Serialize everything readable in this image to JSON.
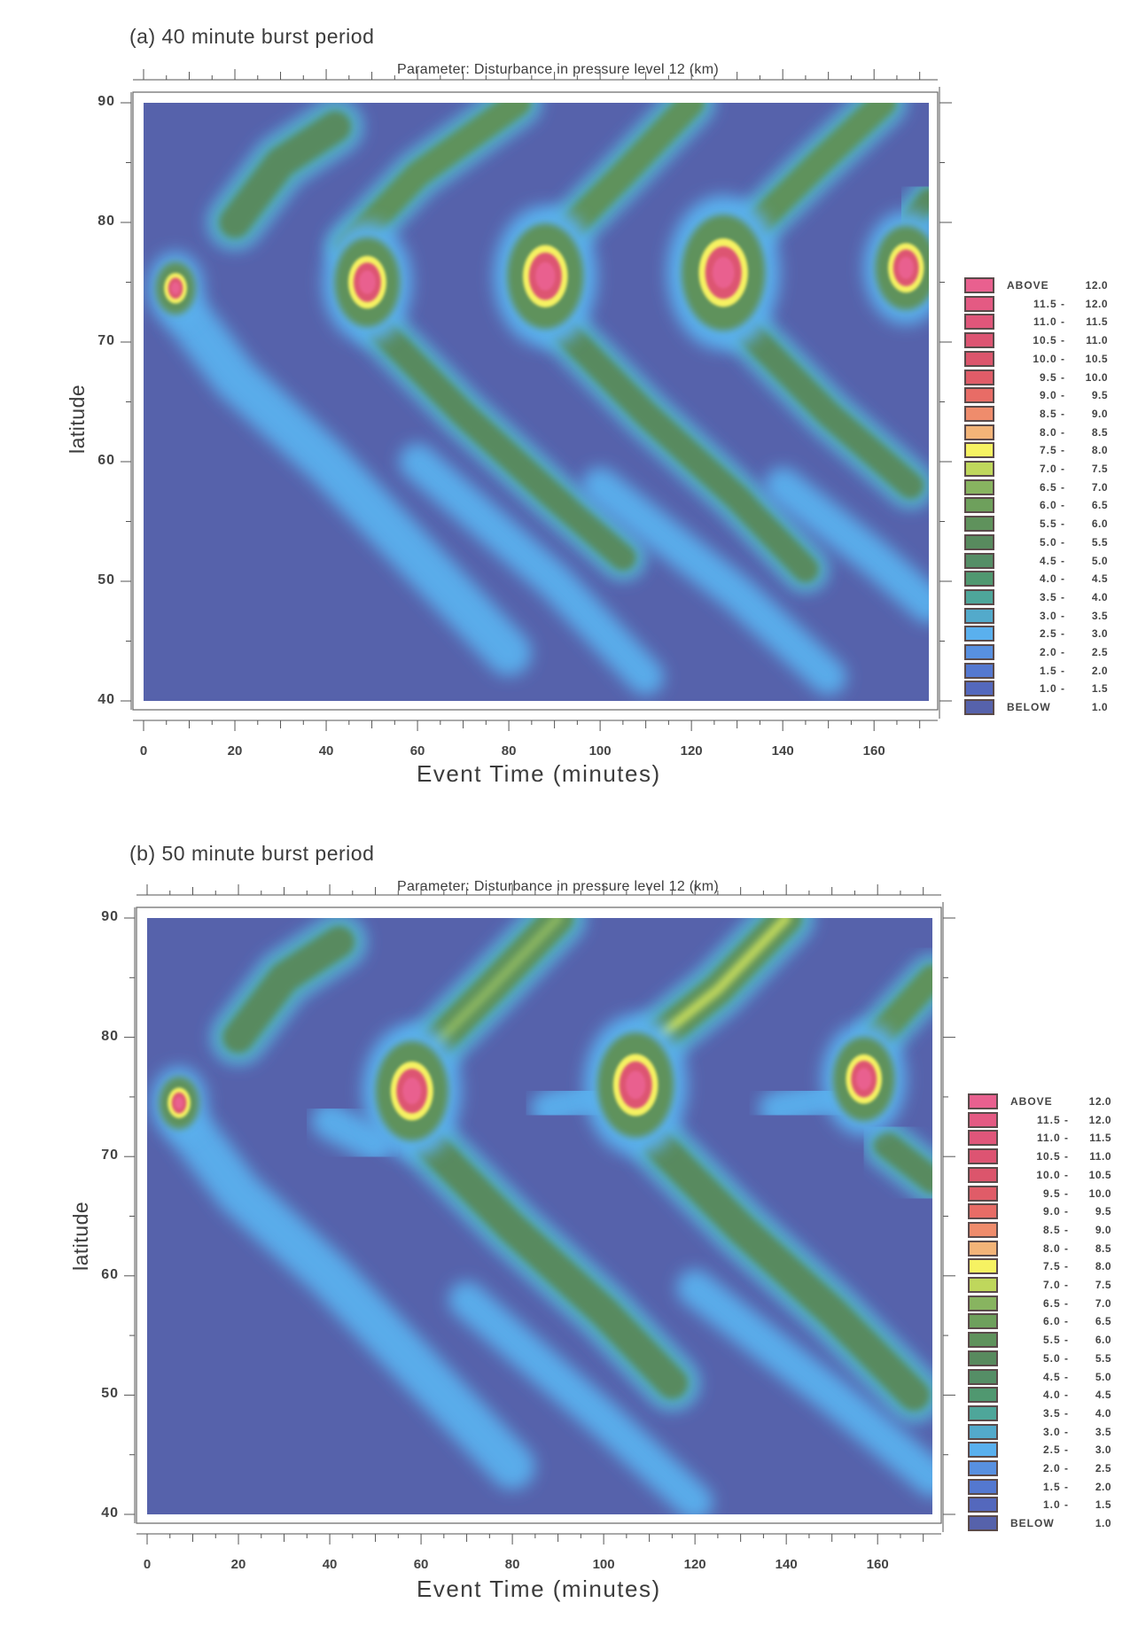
{
  "chart_data": [
    {
      "type": "heatmap",
      "panel_title": "(a) 40 minute burst period",
      "title": "Parameter: Disturbance in pressure level 12 (km)",
      "xlabel": "Event Time (minutes)",
      "ylabel": "latitude",
      "xlim": [
        0,
        172
      ],
      "ylim": [
        40,
        90
      ],
      "x_ticks": [
        0,
        20,
        40,
        60,
        80,
        100,
        120,
        140,
        160
      ],
      "y_ticks": [
        40,
        50,
        60,
        70,
        80,
        90
      ],
      "burst_period_min": 40,
      "hotspots": [
        {
          "t": 7,
          "lat": 74.5,
          "peak": 12.0,
          "r": 1.6
        },
        {
          "t": 49,
          "lat": 75,
          "peak": 12.0,
          "r": 3.0
        },
        {
          "t": 88,
          "lat": 75.5,
          "peak": 12.0,
          "r": 3.6
        },
        {
          "t": 127,
          "lat": 75.8,
          "peak": 12.0,
          "r": 4.0
        },
        {
          "t": 167,
          "lat": 76.2,
          "peak": 12.0,
          "r": 2.8
        }
      ],
      "bands": [
        {
          "points": [
            [
              20,
              80
            ],
            [
              30,
              85
            ],
            [
              42,
              88
            ]
          ],
          "level": 5.5,
          "width": 6
        },
        {
          "points": [
            [
              10,
              72
            ],
            [
              20,
              67
            ],
            [
              40,
              60
            ],
            [
              60,
              52
            ],
            [
              80,
              44
            ]
          ],
          "level": 2.5,
          "width": 5
        },
        {
          "points": [
            [
              45,
              78
            ],
            [
              60,
              84
            ],
            [
              82,
              90
            ]
          ],
          "level": 6.0,
          "width": 5
        },
        {
          "points": [
            [
              52,
              71
            ],
            [
              70,
              64
            ],
            [
              90,
              57
            ],
            [
              105,
              52
            ]
          ],
          "level": 5.5,
          "width": 5
        },
        {
          "points": [
            [
              60,
              60
            ],
            [
              90,
              50
            ],
            [
              110,
              42
            ]
          ],
          "level": 2.5,
          "width": 4
        },
        {
          "points": [
            [
              92,
              79
            ],
            [
              105,
              84
            ],
            [
              120,
              90
            ]
          ],
          "level": 6.0,
          "width": 5
        },
        {
          "points": [
            [
              92,
              71
            ],
            [
              110,
              64
            ],
            [
              130,
              57
            ],
            [
              145,
              51
            ]
          ],
          "level": 5.5,
          "width": 5
        },
        {
          "points": [
            [
              100,
              58
            ],
            [
              130,
              49
            ],
            [
              150,
              42
            ]
          ],
          "level": 2.5,
          "width": 4
        },
        {
          "points": [
            [
              132,
              79
            ],
            [
              148,
              85
            ],
            [
              162,
              90
            ]
          ],
          "level": 6.0,
          "width": 5
        },
        {
          "points": [
            [
              132,
              71
            ],
            [
              150,
              64
            ],
            [
              168,
              58
            ]
          ],
          "level": 5.5,
          "width": 5
        },
        {
          "points": [
            [
              140,
              58
            ],
            [
              160,
              52
            ],
            [
              172,
              48
            ]
          ],
          "level": 2.5,
          "width": 4
        },
        {
          "points": [
            [
              168,
              80
            ],
            [
              172,
              82
            ]
          ],
          "level": 5.5,
          "width": 4
        }
      ]
    },
    {
      "type": "heatmap",
      "panel_title": "(b) 50 minute burst period",
      "title": "Parameter: Disturbance in pressure level 12 (km)",
      "xlabel": "Event Time (minutes)",
      "ylabel": "latitude",
      "xlim": [
        0,
        172
      ],
      "ylim": [
        40,
        90
      ],
      "x_ticks": [
        0,
        20,
        40,
        60,
        80,
        100,
        120,
        140,
        160
      ],
      "y_ticks": [
        40,
        50,
        60,
        70,
        80,
        90
      ],
      "burst_period_min": 50,
      "hotspots": [
        {
          "t": 7,
          "lat": 74.5,
          "peak": 12.0,
          "r": 1.6
        },
        {
          "t": 58,
          "lat": 75.5,
          "peak": 12.0,
          "r": 3.4
        },
        {
          "t": 107,
          "lat": 76,
          "peak": 12.0,
          "r": 3.6
        },
        {
          "t": 157,
          "lat": 76.5,
          "peak": 12.0,
          "r": 2.8
        }
      ],
      "bands": [
        {
          "points": [
            [
              20,
              80
            ],
            [
              30,
              85
            ],
            [
              42,
              88
            ]
          ],
          "level": 5.5,
          "width": 6
        },
        {
          "points": [
            [
              10,
              72
            ],
            [
              20,
              67
            ],
            [
              40,
              60
            ],
            [
              60,
              52
            ],
            [
              80,
              44
            ]
          ],
          "level": 2.5,
          "width": 5
        },
        {
          "points": [
            [
              40,
              73
            ],
            [
              50,
              71
            ]
          ],
          "level": 2.5,
          "width": 4
        },
        {
          "points": [
            [
              62,
              79
            ],
            [
              75,
              84
            ],
            [
              90,
              90
            ]
          ],
          "level": 7.0,
          "width": 6
        },
        {
          "points": [
            [
              62,
              71
            ],
            [
              80,
              64
            ],
            [
              100,
              57
            ],
            [
              115,
              51
            ]
          ],
          "level": 5.5,
          "width": 6
        },
        {
          "points": [
            [
              70,
              58
            ],
            [
              100,
              48
            ],
            [
              120,
              41
            ]
          ],
          "level": 2.5,
          "width": 4
        },
        {
          "points": [
            [
              88,
              74
            ],
            [
              98,
              75
            ]
          ],
          "level": 2.5,
          "width": 4
        },
        {
          "points": [
            [
              112,
              80
            ],
            [
              125,
              84
            ],
            [
              140,
              90
            ]
          ],
          "level": 7.5,
          "width": 6
        },
        {
          "points": [
            [
              112,
              71
            ],
            [
              130,
              64
            ],
            [
              150,
              57
            ],
            [
              168,
              50
            ]
          ],
          "level": 5.5,
          "width": 6
        },
        {
          "points": [
            [
              120,
              59
            ],
            [
              150,
              50
            ],
            [
              172,
              43
            ]
          ],
          "level": 2.5,
          "width": 4
        },
        {
          "points": [
            [
              138,
              74
            ],
            [
              150,
              75
            ]
          ],
          "level": 2.5,
          "width": 4
        },
        {
          "points": [
            [
              160,
              80
            ],
            [
              172,
              85
            ]
          ],
          "level": 6.5,
          "width": 5
        },
        {
          "points": [
            [
              162,
              71
            ],
            [
              172,
              68
            ]
          ],
          "level": 5.5,
          "width": 5
        }
      ]
    }
  ],
  "legend": {
    "items": [
      {
        "lo": "ABOVE",
        "hi": "12.0",
        "color": "#e9608f"
      },
      {
        "lo": "11.5 -",
        "hi": "12.0",
        "color": "#e45a83"
      },
      {
        "lo": "11.0 -",
        "hi": "11.5",
        "color": "#e0567a"
      },
      {
        "lo": "10.5 -",
        "hi": "11.0",
        "color": "#dd5472"
      },
      {
        "lo": "10.0 -",
        "hi": "10.5",
        "color": "#dc556c"
      },
      {
        "lo": "9.5 -",
        "hi": "10.0",
        "color": "#e05c68"
      },
      {
        "lo": "9.0 -",
        "hi": "9.5",
        "color": "#e86c66"
      },
      {
        "lo": "8.5 -",
        "hi": "9.0",
        "color": "#ef8c6c"
      },
      {
        "lo": "8.0 -",
        "hi": "8.5",
        "color": "#f3b478"
      },
      {
        "lo": "7.5 -",
        "hi": "8.0",
        "color": "#f6f262"
      },
      {
        "lo": "7.0 -",
        "hi": "7.5",
        "color": "#bfd75c"
      },
      {
        "lo": "6.5 -",
        "hi": "7.0",
        "color": "#88b460"
      },
      {
        "lo": "6.0 -",
        "hi": "6.5",
        "color": "#6ea05c"
      },
      {
        "lo": "5.5 -",
        "hi": "6.0",
        "color": "#5f925c"
      },
      {
        "lo": "5.0 -",
        "hi": "5.5",
        "color": "#588a5e"
      },
      {
        "lo": "4.5 -",
        "hi": "5.0",
        "color": "#558e66"
      },
      {
        "lo": "4.0 -",
        "hi": "4.5",
        "color": "#509870"
      },
      {
        "lo": "3.5 -",
        "hi": "4.0",
        "color": "#4ea69a"
      },
      {
        "lo": "3.0 -",
        "hi": "3.5",
        "color": "#53aacb"
      },
      {
        "lo": "2.5 -",
        "hi": "3.0",
        "color": "#5ab0ee"
      },
      {
        "lo": "2.0 -",
        "hi": "2.5",
        "color": "#5890e0"
      },
      {
        "lo": "1.5 -",
        "hi": "2.0",
        "color": "#5478d0"
      },
      {
        "lo": "1.0 -",
        "hi": "1.5",
        "color": "#5468bd"
      },
      {
        "lo": "BELOW",
        "hi": "1.0",
        "color": "#5662ab"
      }
    ]
  },
  "colors": {
    "background": "#5662ab",
    "axis": "#555555"
  }
}
